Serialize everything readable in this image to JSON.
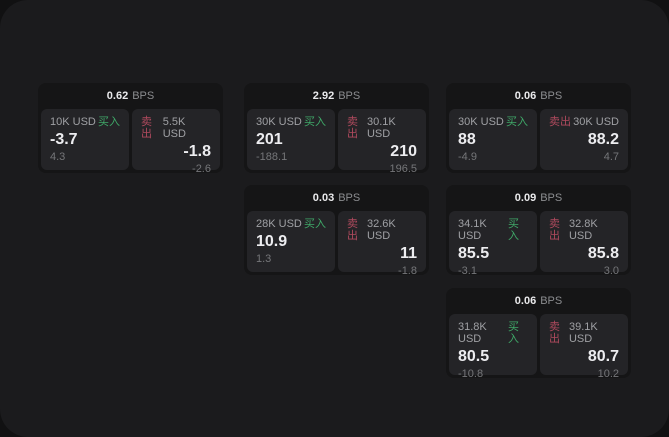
{
  "labels": {
    "bps": "BPS",
    "buy": "买入",
    "sell": "卖出"
  },
  "colors": {
    "buy_accent": "#3fa868",
    "sell_accent": "#b04a5e",
    "panel_bg": "#1b1b1d",
    "card_bg": "#151516",
    "tile_bg": "#242427"
  },
  "cards": [
    {
      "bps": "0.62",
      "buy": {
        "size": "10K USD",
        "value": "-3.7",
        "delta": "4.3"
      },
      "sell": {
        "size": "5.5K USD",
        "value": "-1.8",
        "delta": "-2.6"
      }
    },
    {
      "bps": "2.92",
      "buy": {
        "size": "30K USD",
        "value": "201",
        "delta": "-188.1"
      },
      "sell": {
        "size": "30.1K USD",
        "value": "210",
        "delta": "196.5"
      }
    },
    {
      "bps": "0.06",
      "buy": {
        "size": "30K USD",
        "value": "88",
        "delta": "-4.9"
      },
      "sell": {
        "size": "30K USD",
        "value": "88.2",
        "delta": "4.7"
      }
    },
    {
      "bps": "0.03",
      "buy": {
        "size": "28K USD",
        "value": "10.9",
        "delta": "1.3"
      },
      "sell": {
        "size": "32.6K USD",
        "value": "11",
        "delta": "-1.8"
      }
    },
    {
      "bps": "0.09",
      "buy": {
        "size": "34.1K USD",
        "value": "85.5",
        "delta": "-3.1"
      },
      "sell": {
        "size": "32.8K USD",
        "value": "85.8",
        "delta": "3.0"
      }
    },
    {
      "bps": "0.06",
      "buy": {
        "size": "31.8K USD",
        "value": "80.5",
        "delta": "-10.8"
      },
      "sell": {
        "size": "39.1K USD",
        "value": "80.7",
        "delta": "10.2"
      }
    }
  ]
}
